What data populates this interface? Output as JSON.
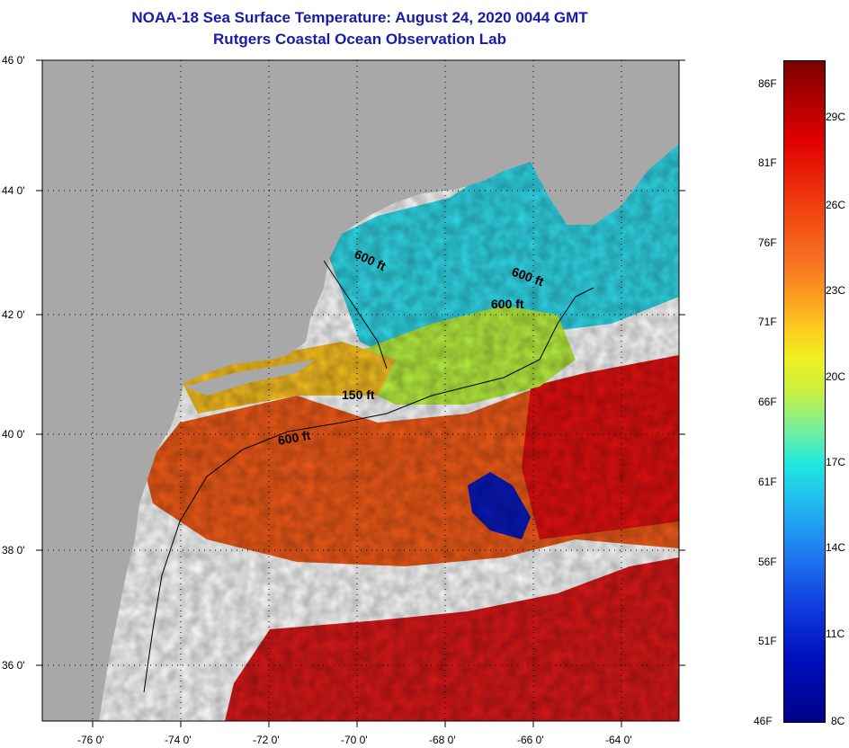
{
  "title": {
    "line1": "NOAA-18 Sea Surface Temperature:  August 24, 2020 0044 GMT",
    "line2": "Rutgers Coastal Ocean Observation Lab"
  },
  "axes": {
    "latitude_labels": [
      "46 0'",
      "44 0'",
      "42 0'",
      "40 0'",
      "38 0'",
      "36 0'"
    ],
    "longitude_labels": [
      "-76 0'",
      "-74 0'",
      "-72 0'",
      "-70 0'",
      "-68 0'",
      "-66 0'",
      "-64 0'"
    ]
  },
  "contours": [
    "600 ft",
    "600 ft",
    "600 ft",
    "150 ft",
    "600 ft"
  ],
  "colorbar": {
    "fahrenheit": [
      "86F",
      "81F",
      "76F",
      "71F",
      "66F",
      "61F",
      "56F",
      "51F",
      "46F"
    ],
    "celsius": [
      "29C",
      "26C",
      "23C",
      "20C",
      "17C",
      "14C",
      "11C",
      "8C"
    ]
  },
  "colors": {
    "title": "#1a1aa8",
    "land": "#a8a8a8",
    "cloud": "#ffffff"
  }
}
